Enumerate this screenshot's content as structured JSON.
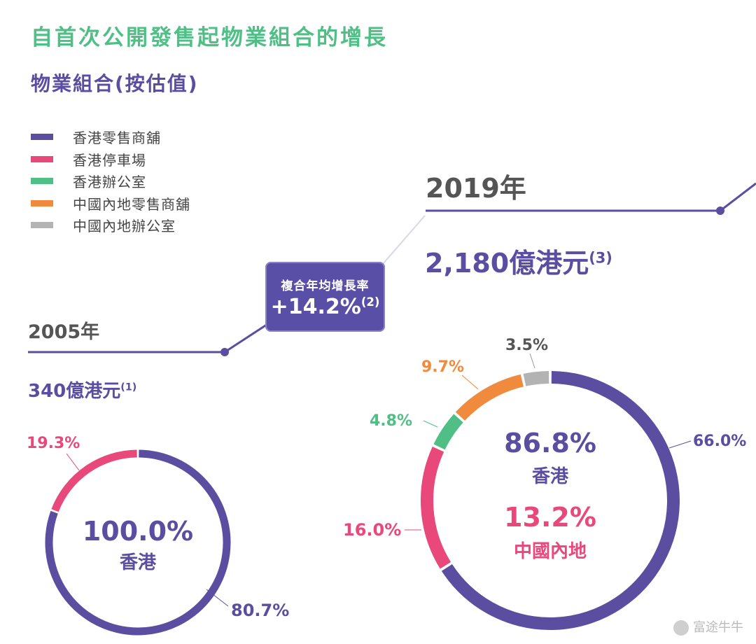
{
  "title": "自首次公開發售起物業組合的增長",
  "subtitle": "物業組合(按估值)",
  "legend": [
    {
      "label": "香港零售商舖",
      "color": "#5b4ea1"
    },
    {
      "label": "香港停車場",
      "color": "#e8487a"
    },
    {
      "label": "香港辦公室",
      "color": "#4fbf86"
    },
    {
      "label": "中國內地零售商舖",
      "color": "#f08a3c"
    },
    {
      "label": "中國內地辦公室",
      "color": "#b3b3b3"
    }
  ],
  "timeline": {
    "start_year": "2005年",
    "start_amount": "340億港元",
    "start_note": "(1)",
    "end_year": "2019年",
    "end_amount": "2,180億港元",
    "end_note": "(3)"
  },
  "cagr": {
    "label": "複合年均增長率",
    "value": "+14.2%",
    "note": "(2)"
  },
  "chart_data": [
    {
      "type": "pie",
      "donut": true,
      "year": "2005年",
      "slices": [
        {
          "category": "香港零售商舖",
          "value": 80.7,
          "label": "80.7%"
        },
        {
          "category": "香港停車場",
          "value": 19.3,
          "label": "19.3%"
        }
      ],
      "center": [
        {
          "text": "100.0%",
          "sub": "香港",
          "color": "#5b4ea1"
        }
      ]
    },
    {
      "type": "pie",
      "donut": true,
      "year": "2019年",
      "slices": [
        {
          "category": "香港零售商舖",
          "value": 66.0,
          "label": "66.0%"
        },
        {
          "category": "香港停車場",
          "value": 16.0,
          "label": "16.0%"
        },
        {
          "category": "香港辦公室",
          "value": 4.8,
          "label": "4.8%"
        },
        {
          "category": "中國內地零售商舖",
          "value": 9.7,
          "label": "9.7%"
        },
        {
          "category": "中國內地辦公室",
          "value": 3.5,
          "label": "3.5%"
        }
      ],
      "center": [
        {
          "text": "86.8%",
          "sub": "香港",
          "color": "#5b4ea1"
        },
        {
          "text": "13.2%",
          "sub": "中國內地",
          "color": "#e8487a"
        }
      ]
    }
  ],
  "watermark": "富途牛牛"
}
